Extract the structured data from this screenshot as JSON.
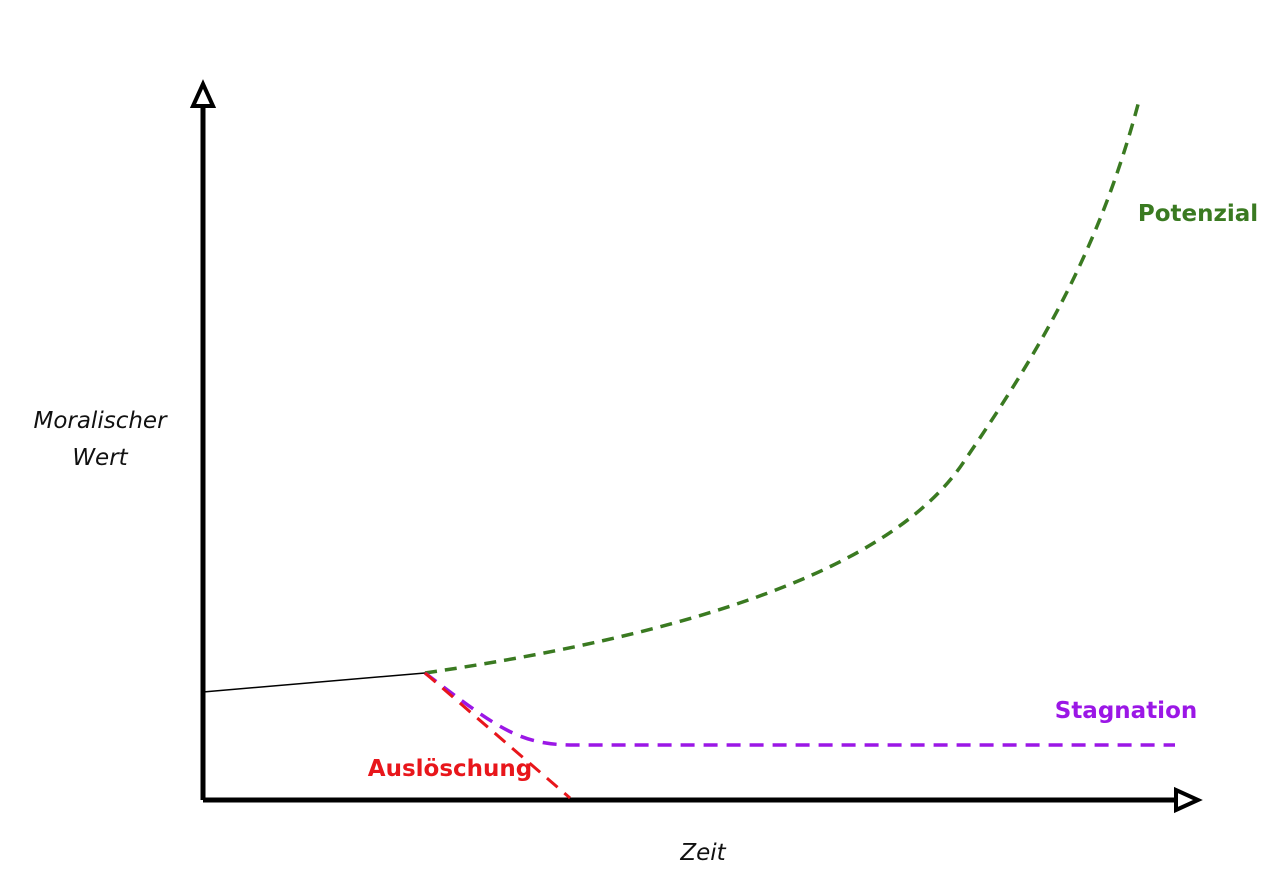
{
  "y_axis_label": [
    "Moralischer",
    "Wert"
  ],
  "x_axis_label": "Zeit",
  "curves": [
    {
      "label": "Potenzial"
    },
    {
      "label": "Stagnation"
    },
    {
      "label": "Auslöschung"
    }
  ]
}
